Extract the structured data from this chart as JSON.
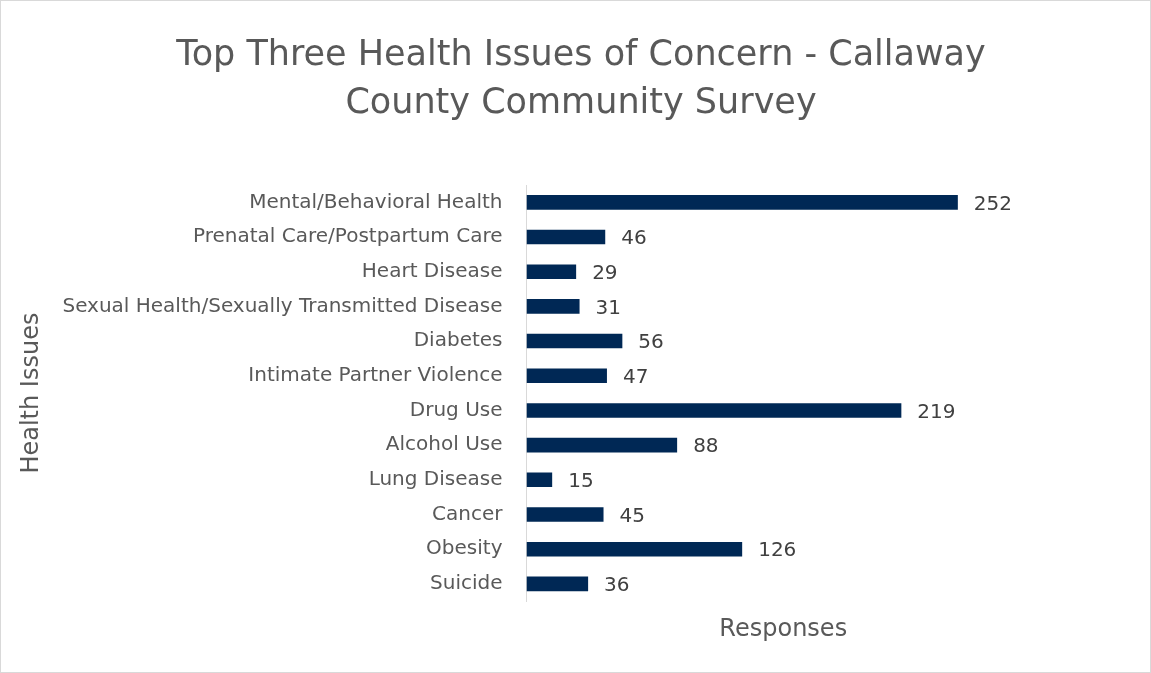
{
  "chart_data": {
    "type": "bar",
    "orientation": "horizontal",
    "title": "Top Three Health Issues of Concern - Callaway County Community Survey",
    "xlabel": "Responses",
    "ylabel": "Health Issues",
    "categories": [
      "Mental/Behavioral Health",
      "Prenatal Care/Postpartum Care",
      "Heart Disease",
      "Sexual Health/Sexually Transmitted Disease",
      "Diabetes",
      "Intimate Partner Violence",
      "Drug Use",
      "Alcohol Use",
      "Lung Disease",
      "Cancer",
      "Obesity",
      "Suicide"
    ],
    "values": [
      252,
      46,
      29,
      31,
      56,
      47,
      219,
      88,
      15,
      45,
      126,
      36
    ],
    "color": "#002855",
    "data_labels": true,
    "grid": false,
    "legend": false,
    "tick_labels": "y"
  }
}
